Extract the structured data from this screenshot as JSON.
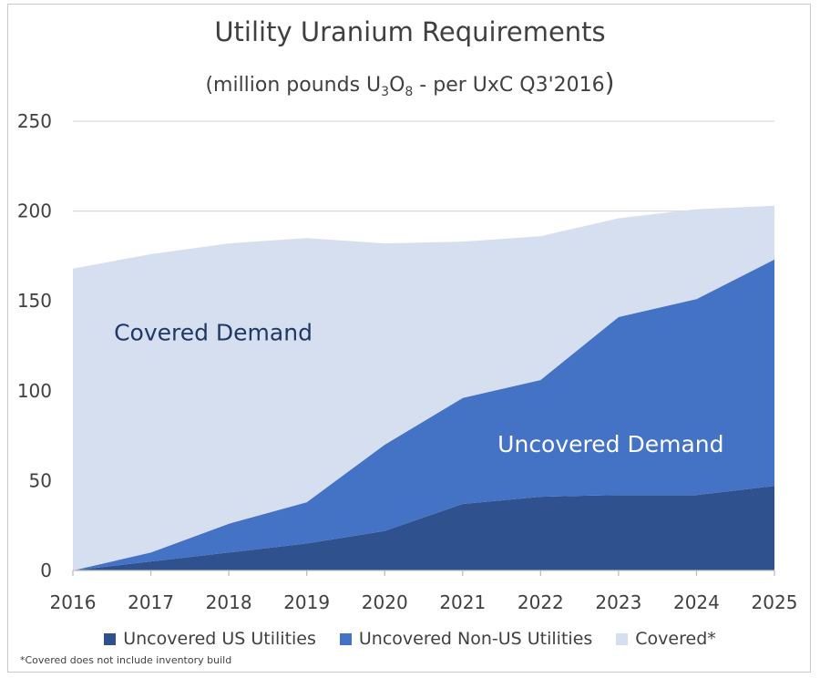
{
  "chart_data": {
    "type": "area",
    "stacked": true,
    "title": "Utility Uranium Requirements",
    "subtitle": {
      "prefix": "(million pounds U",
      "sub1": "3",
      "mid": "O",
      "sub2": "8",
      "suffix": " - per UxC Q3'2016",
      "close": ")"
    },
    "x": [
      2016,
      2017,
      2018,
      2019,
      2020,
      2021,
      2022,
      2023,
      2024,
      2025
    ],
    "x_tick_labels": [
      "2016",
      "2017",
      "2018",
      "2019",
      "2020",
      "2021",
      "2022",
      "2023",
      "2024",
      "2025"
    ],
    "y_ticks": [
      0,
      50,
      100,
      150,
      200,
      250
    ],
    "y_tick_labels": [
      "0",
      "50",
      "100",
      "150",
      "200",
      "250"
    ],
    "ylim": [
      0,
      250
    ],
    "grid": true,
    "series": [
      {
        "name": "Uncovered US Utilities",
        "color": "#2f528f",
        "values": [
          0,
          5,
          10,
          15,
          22,
          37,
          41,
          42,
          42,
          47
        ]
      },
      {
        "name": "Uncovered Non-US Utilities",
        "color": "#4472c4",
        "values": [
          0,
          5,
          16,
          23,
          48,
          59,
          65,
          99,
          109,
          126
        ]
      },
      {
        "name": "Covered*",
        "color": "#d6dff0",
        "values": [
          168,
          166,
          156,
          147,
          112,
          87,
          80,
          55,
          50,
          30
        ]
      }
    ],
    "annotations": [
      {
        "text": "Covered Demand",
        "x": 2017.8,
        "y": 128,
        "color": "#1f3864"
      },
      {
        "text": "Uncovered Demand",
        "x": 2022.9,
        "y": 66,
        "color": "#ffffff"
      }
    ],
    "footnote": "*Covered does not include inventory build",
    "legend_position": "bottom"
  }
}
